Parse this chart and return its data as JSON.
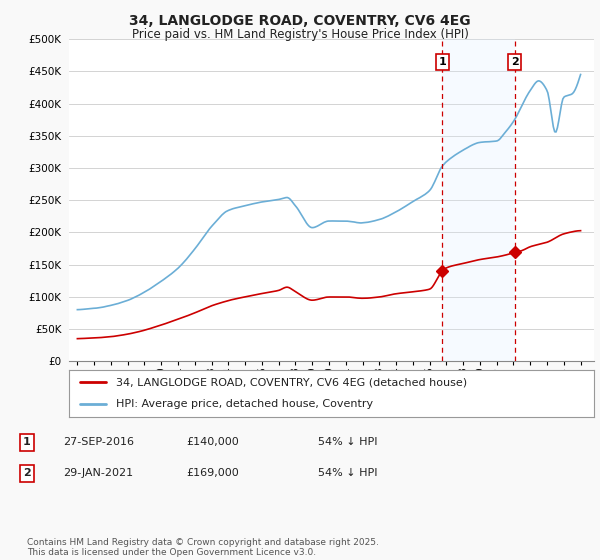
{
  "title": "34, LANGLODGE ROAD, COVENTRY, CV6 4EG",
  "subtitle": "Price paid vs. HM Land Registry's House Price Index (HPI)",
  "background_color": "#f9f9f9",
  "plot_bg_color": "#ffffff",
  "hpi_color": "#6baed6",
  "price_color": "#cc0000",
  "marker_color": "#cc0000",
  "shade_color": "#ddeeff",
  "vline_color": "#cc0000",
  "ylim": [
    0,
    500000
  ],
  "yticks": [
    0,
    50000,
    100000,
    150000,
    200000,
    250000,
    300000,
    350000,
    400000,
    450000,
    500000
  ],
  "ytick_labels": [
    "£0",
    "£50K",
    "£100K",
    "£150K",
    "£200K",
    "£250K",
    "£300K",
    "£350K",
    "£400K",
    "£450K",
    "£500K"
  ],
  "sale1_date": 2016.75,
  "sale1_price": 140000,
  "sale1_label": "1",
  "sale2_date": 2021.08,
  "sale2_price": 169000,
  "sale2_label": "2",
  "legend_line1": "34, LANGLODGE ROAD, COVENTRY, CV6 4EG (detached house)",
  "legend_line2": "HPI: Average price, detached house, Coventry",
  "footer": "Contains HM Land Registry data © Crown copyright and database right 2025.\nThis data is licensed under the Open Government Licence v3.0.",
  "xmin": 1994.5,
  "xmax": 2025.8
}
